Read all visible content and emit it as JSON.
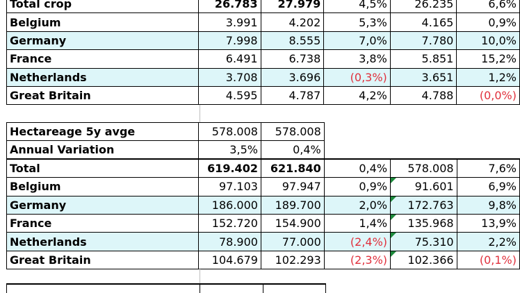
{
  "table1": {
    "rows": [
      {
        "label": "Total crop",
        "v1": "26.783",
        "v2": "27.979",
        "v3": "4,5%",
        "v4": "26.235",
        "v5": "6,6%"
      },
      {
        "label": "Belgium",
        "v1": "3.991",
        "v2": "4.202",
        "v3": "5,3%",
        "v4": "4.165",
        "v5": "0,9%"
      },
      {
        "label": "Germany",
        "v1": "7.998",
        "v2": "8.555",
        "v3": "7,0%",
        "v4": "7.780",
        "v5": "10,0%"
      },
      {
        "label": "France",
        "v1": "6.491",
        "v2": "6.738",
        "v3": "3,8%",
        "v4": "5.851",
        "v5": "15,2%"
      },
      {
        "label": "Netherlands",
        "v1": "3.708",
        "v2": "3.696",
        "v3": "(0,3%)",
        "v4": "3.651",
        "v5": "1,2%"
      },
      {
        "label": "Great Britain",
        "v1": "4.595",
        "v2": "4.787",
        "v3": "4,2%",
        "v4": "4.788",
        "v5": "(0,0%)"
      }
    ]
  },
  "table2": {
    "hectareage": {
      "label": "Hectareage 5y avge",
      "v1": "578.008",
      "v2": "578.008"
    },
    "annual": {
      "label": "Annual Variation",
      "v1": "3,5%",
      "v2": "0,4%"
    },
    "rows": [
      {
        "label": "Total",
        "v1": "619.402",
        "v2": "621.840",
        "v3": "0,4%",
        "v4": "578.008",
        "v5": "7,6%"
      },
      {
        "label": "Belgium",
        "v1": "97.103",
        "v2": "97.947",
        "v3": "0,9%",
        "v4": "91.601",
        "v5": "6,9%"
      },
      {
        "label": "Germany",
        "v1": "186.000",
        "v2": "189.700",
        "v3": "2,0%",
        "v4": "172.763",
        "v5": "9,8%"
      },
      {
        "label": "France",
        "v1": "152.720",
        "v2": "154.900",
        "v3": "1,4%",
        "v4": "135.968",
        "v5": "13,9%"
      },
      {
        "label": "Netherlands",
        "v1": "78.900",
        "v2": "77.000",
        "v3": "(2,4%)",
        "v4": "75.310",
        "v5": "2,2%"
      },
      {
        "label": "Great Britain",
        "v1": "104.679",
        "v2": "102.293",
        "v3": "(2,3%)",
        "v4": "102.366",
        "v5": "(0,1%)"
      }
    ]
  },
  "colors": {
    "highlight": "#ddf6f9",
    "negative": "#e0303c",
    "comment_marker": "#1d8a3c"
  }
}
